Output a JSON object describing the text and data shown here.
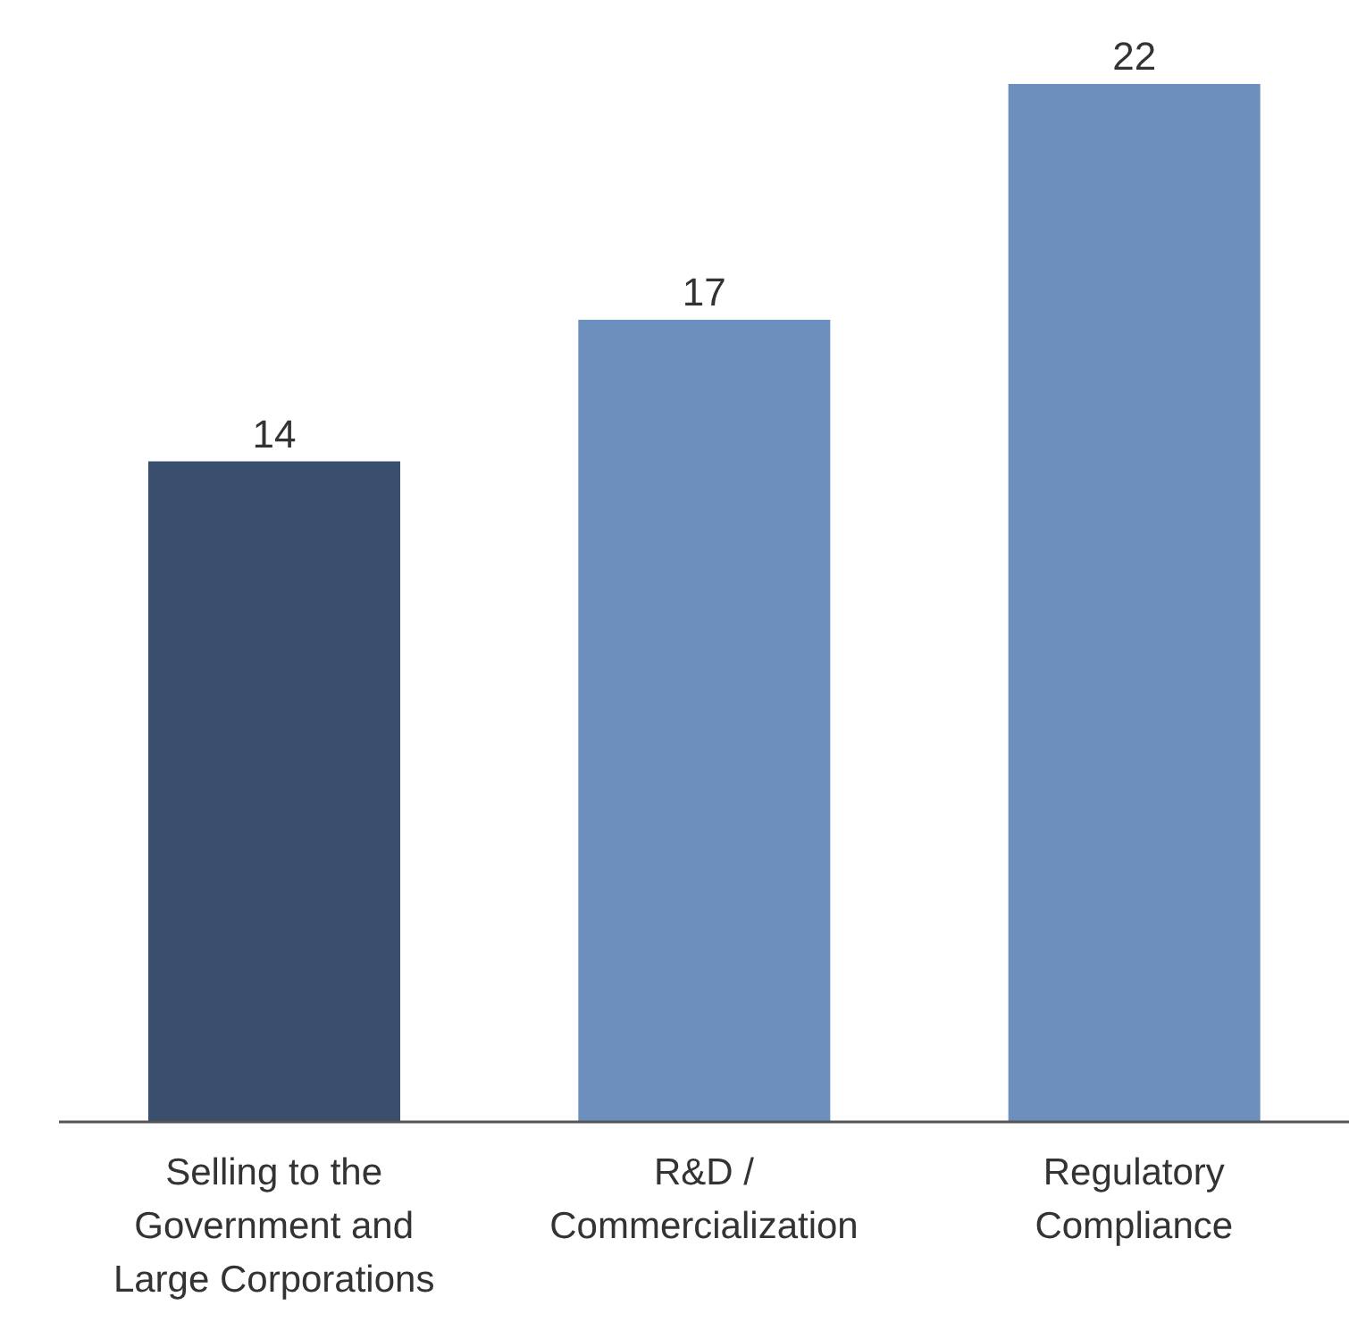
{
  "chart_data": {
    "type": "bar",
    "categories": [
      "Selling to the Government and Large Corporations",
      "R&D / Commercialization",
      "Regulatory Compliance"
    ],
    "values": [
      14,
      17,
      22
    ],
    "colors": [
      "#394f6d",
      "#6d8fbd",
      "#6d8fbd"
    ],
    "data_labels": true,
    "grid": false,
    "legend": false
  }
}
